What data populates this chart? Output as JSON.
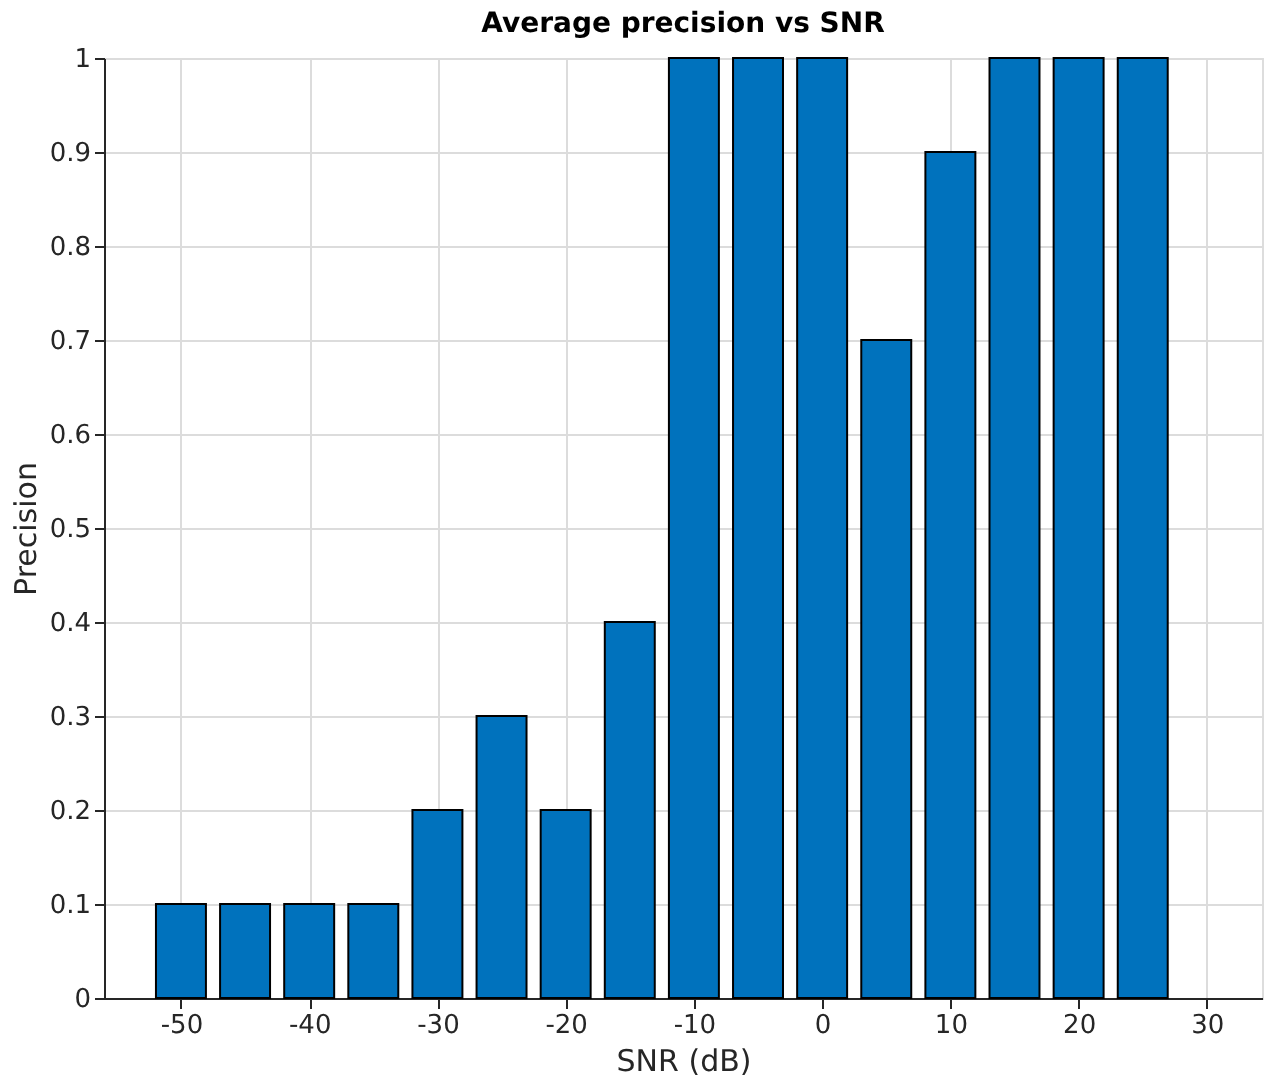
{
  "chart_data": {
    "type": "bar",
    "title": "Average precision vs SNR",
    "xlabel": "SNR (dB)",
    "ylabel": "Precision",
    "x": [
      -50,
      -45,
      -40,
      -35,
      -30,
      -25,
      -20,
      -15,
      -10,
      -5,
      0,
      5,
      10,
      15,
      20,
      25
    ],
    "values": [
      0.1,
      0.1,
      0.1,
      0.1,
      0.2,
      0.3,
      0.2,
      0.4,
      1,
      1,
      1,
      0.7,
      0.9,
      1,
      1,
      1
    ],
    "color": "#0072bd",
    "xlim": [
      -56,
      34.3
    ],
    "xticks": [
      -50,
      -40,
      -30,
      -20,
      -10,
      0,
      10,
      20,
      30
    ],
    "ylim": [
      0,
      1
    ],
    "yticks": [
      0,
      0.1,
      0.2,
      0.3,
      0.4,
      0.5,
      0.6,
      0.7,
      0.8,
      0.9,
      1
    ],
    "grid": true
  }
}
